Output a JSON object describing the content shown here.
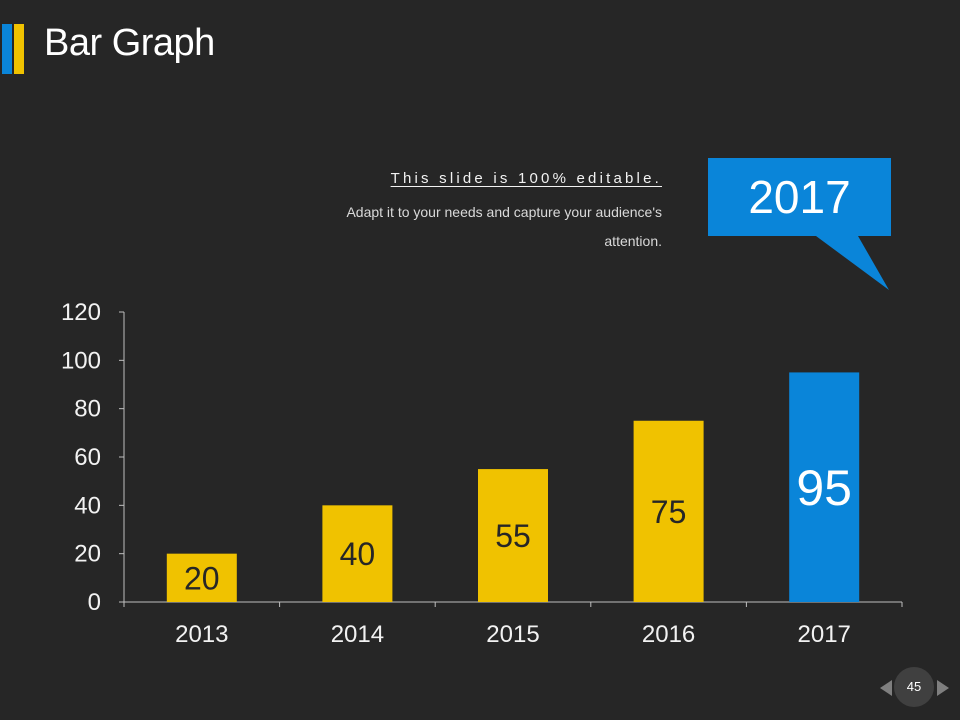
{
  "slide": {
    "title": "Bar Graph",
    "subtitle": "This slide is 100% editable.",
    "description": "Adapt it to your needs and capture your audience's attention.",
    "page_number": "45"
  },
  "callout": {
    "label": "2017"
  },
  "colors": {
    "background": "#262626",
    "accent_blue": "#0a85d9",
    "accent_yellow": "#f0c200",
    "bar_default": "#f0c200",
    "bar_highlight": "#0a85d9",
    "axis": "#bfbfbf"
  },
  "chart_data": {
    "type": "bar",
    "title": "Bar Graph",
    "categories": [
      "2013",
      "2014",
      "2015",
      "2016",
      "2017"
    ],
    "values": [
      20,
      40,
      55,
      75,
      95
    ],
    "highlight_index": 4,
    "ylim": [
      0,
      120
    ],
    "yticks": [
      0,
      20,
      40,
      60,
      80,
      100,
      120
    ],
    "xlabel": "",
    "ylabel": "",
    "grid": false,
    "legend": "none"
  }
}
